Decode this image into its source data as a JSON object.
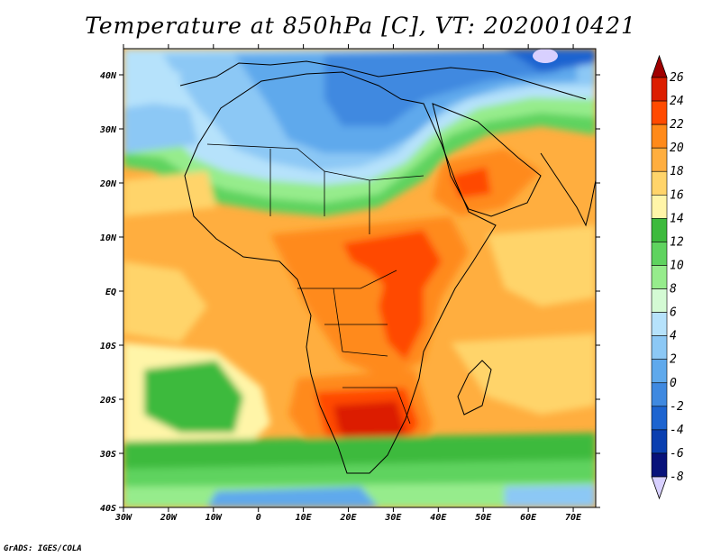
{
  "title": "Temperature at 850hPa [C], VT: 2020010421",
  "credit": "GrADS: IGES/COLA",
  "map": {
    "lon_range": [
      -30,
      75
    ],
    "lat_range": [
      -40,
      45
    ],
    "lat_ticks": [
      "40N",
      "30N",
      "20N",
      "10N",
      "EQ",
      "10S",
      "20S",
      "30S",
      "40S"
    ],
    "lon_ticks": [
      "30W",
      "20W",
      "10W",
      "0",
      "10E",
      "20E",
      "30E",
      "40E",
      "50E",
      "60E",
      "70E"
    ]
  },
  "colorbar": {
    "labels": [
      "26",
      "24",
      "22",
      "20",
      "18",
      "16",
      "14",
      "12",
      "10",
      "8",
      "6",
      "4",
      "2",
      "0",
      "-2",
      "-4",
      "-6",
      "-8"
    ],
    "colors": [
      "#a00000",
      "#dc1e00",
      "#ff4a00",
      "#ff8a1a",
      "#ffae3f",
      "#ffd46a",
      "#fff5a8",
      "#3cba3c",
      "#5fd35f",
      "#96ec8c",
      "#d4fad4",
      "#b6e2fb",
      "#8cc8f5",
      "#5fa9ec",
      "#3f89e0",
      "#1d64d0",
      "#0a3fb0",
      "#08127a",
      "#d8d0ff"
    ]
  }
}
